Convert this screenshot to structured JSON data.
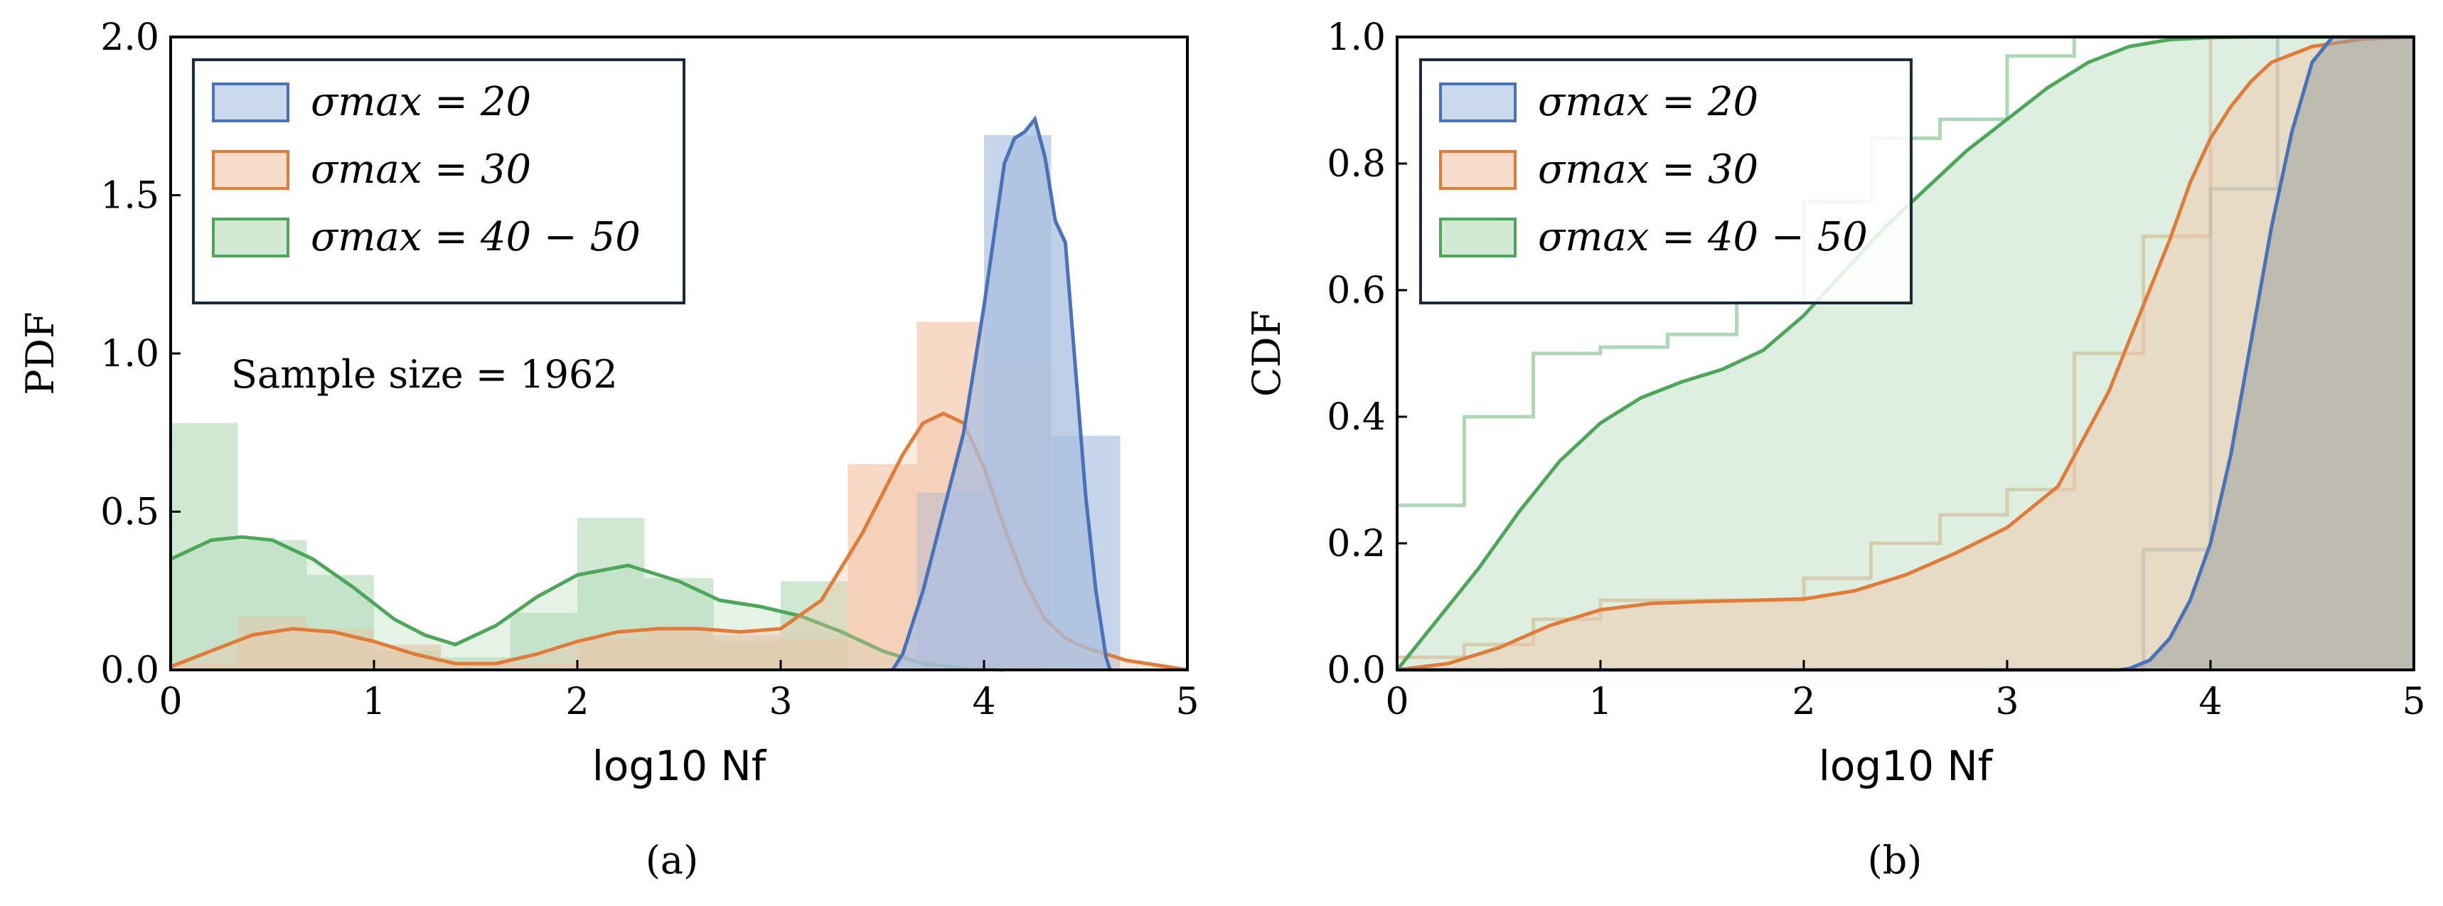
{
  "figure": {
    "captions": [
      "(a)",
      "(b)"
    ]
  },
  "colors": {
    "s20": "#4a72b8",
    "s30": "#e07b39",
    "s40": "#4ea65a",
    "s20_fill": "#a9bfe0",
    "s30_fill": "#f4c4a6",
    "s40_fill": "#b4dbb8"
  },
  "chart_data": [
    {
      "id": "pdf",
      "type": "bar",
      "title": "",
      "xlabel": "log10 Nf",
      "ylabel": "PDF",
      "xlim": [
        0,
        5
      ],
      "ylim": [
        0,
        2.0
      ],
      "xticks": [
        "0",
        "1",
        "2",
        "3",
        "4",
        "5"
      ],
      "yticks": [
        "0.0",
        "0.5",
        "1.0",
        "1.5",
        "2.0"
      ],
      "annotation": "Sample size = 1962",
      "legend": {
        "position": "top-left",
        "entries": [
          "σmax = 20",
          "σmax = 30",
          "σmax = 40 − 50"
        ]
      },
      "series": [
        {
          "name": "σmax = 20",
          "hist_edges": [
            3.67,
            4.0,
            4.33,
            4.67
          ],
          "hist_values": [
            0.56,
            1.69,
            0.74
          ],
          "kde_x": [
            3.55,
            3.6,
            3.7,
            3.8,
            3.9,
            4.0,
            4.1,
            4.15,
            4.2,
            4.25,
            4.3,
            4.35,
            4.4,
            4.45,
            4.5,
            4.55,
            4.6,
            4.62
          ],
          "kde_y": [
            0.0,
            0.05,
            0.25,
            0.5,
            0.75,
            1.15,
            1.6,
            1.68,
            1.7,
            1.74,
            1.62,
            1.42,
            1.35,
            0.95,
            0.55,
            0.25,
            0.04,
            0.0
          ]
        },
        {
          "name": "σmax = 30",
          "hist_edges": [
            0.0,
            0.33,
            0.67,
            1.0,
            1.33,
            1.67,
            2.0,
            2.33,
            2.67,
            3.0,
            3.33,
            3.67,
            4.0,
            4.33
          ],
          "hist_values": [
            0.02,
            0.17,
            0.13,
            0.08,
            0.02,
            0.02,
            0.1,
            0.12,
            0.11,
            0.1,
            0.65,
            1.1,
            0.97
          ],
          "kde_x": [
            0.0,
            0.2,
            0.4,
            0.6,
            0.8,
            1.0,
            1.2,
            1.4,
            1.6,
            1.8,
            2.0,
            2.2,
            2.4,
            2.6,
            2.8,
            3.0,
            3.2,
            3.4,
            3.6,
            3.7,
            3.8,
            3.9,
            4.0,
            4.1,
            4.2,
            4.3,
            4.4,
            4.5,
            4.7,
            4.9,
            5.0
          ],
          "kde_y": [
            0.01,
            0.06,
            0.11,
            0.13,
            0.12,
            0.09,
            0.05,
            0.02,
            0.02,
            0.05,
            0.09,
            0.12,
            0.13,
            0.13,
            0.12,
            0.13,
            0.22,
            0.43,
            0.68,
            0.78,
            0.81,
            0.78,
            0.64,
            0.45,
            0.28,
            0.16,
            0.1,
            0.07,
            0.03,
            0.01,
            0.0
          ]
        },
        {
          "name": "σmax = 40 − 50",
          "hist_edges": [
            0.0,
            0.33,
            0.67,
            1.0,
            1.33,
            1.67,
            2.0,
            2.33,
            2.67,
            3.0,
            3.33
          ],
          "hist_values": [
            0.78,
            0.41,
            0.3,
            0.06,
            0.04,
            0.18,
            0.48,
            0.29,
            0.09,
            0.28
          ],
          "kde_x": [
            0.0,
            0.2,
            0.35,
            0.5,
            0.7,
            0.9,
            1.1,
            1.25,
            1.4,
            1.6,
            1.8,
            2.0,
            2.25,
            2.5,
            2.7,
            2.9,
            3.1,
            3.3,
            3.5,
            3.7,
            3.9,
            4.1
          ],
          "kde_y": [
            0.35,
            0.41,
            0.42,
            0.41,
            0.35,
            0.26,
            0.16,
            0.11,
            0.08,
            0.14,
            0.23,
            0.3,
            0.33,
            0.28,
            0.22,
            0.2,
            0.17,
            0.12,
            0.06,
            0.02,
            0.005,
            0.0
          ]
        }
      ]
    },
    {
      "id": "cdf",
      "type": "line",
      "title": "",
      "xlabel": "log10 Nf",
      "ylabel": "CDF",
      "xlim": [
        0,
        5
      ],
      "ylim": [
        0,
        1.0
      ],
      "xticks": [
        "0",
        "1",
        "2",
        "3",
        "4",
        "5"
      ],
      "yticks": [
        "0.0",
        "0.2",
        "0.4",
        "0.6",
        "0.8",
        "1.0"
      ],
      "legend": {
        "position": "top-left",
        "entries": [
          "σmax = 20",
          "σmax = 30",
          "σmax = 40 − 50"
        ]
      },
      "series": [
        {
          "name": "σmax = 20",
          "ecdf_x": [
            0.0,
            3.67,
            3.67,
            3.67,
            4.0,
            4.0,
            4.33,
            4.33,
            5.0
          ],
          "ecdf_y": [
            0.0,
            0.0,
            0.19,
            0.19,
            0.19,
            0.76,
            0.76,
            1.0,
            1.0
          ],
          "kde_x": [
            0.0,
            3.55,
            3.6,
            3.7,
            3.8,
            3.9,
            4.0,
            4.1,
            4.2,
            4.3,
            4.4,
            4.5,
            4.6,
            5.0
          ],
          "kde_y": [
            0.0,
            0.0,
            0.002,
            0.015,
            0.05,
            0.11,
            0.2,
            0.34,
            0.52,
            0.7,
            0.85,
            0.96,
            1.0,
            1.0
          ]
        },
        {
          "name": "σmax = 30",
          "ecdf_x": [
            0.0,
            0.33,
            0.33,
            0.67,
            0.67,
            1.0,
            1.0,
            1.33,
            1.33,
            1.67,
            1.67,
            2.0,
            2.0,
            2.33,
            2.33,
            2.67,
            2.67,
            3.0,
            3.0,
            3.33,
            3.33,
            3.67,
            3.67,
            4.0,
            4.0,
            4.33,
            4.33,
            5.0
          ],
          "ecdf_y": [
            0.02,
            0.02,
            0.04,
            0.04,
            0.08,
            0.08,
            0.11,
            0.11,
            0.11,
            0.11,
            0.11,
            0.11,
            0.145,
            0.145,
            0.2,
            0.2,
            0.245,
            0.245,
            0.285,
            0.285,
            0.5,
            0.5,
            0.685,
            0.685,
            1.0,
            1.0,
            1.0,
            1.0
          ],
          "kde_x": [
            0.0,
            0.25,
            0.5,
            0.75,
            1.0,
            1.25,
            1.5,
            1.75,
            2.0,
            2.25,
            2.5,
            2.75,
            3.0,
            3.25,
            3.5,
            3.6,
            3.7,
            3.8,
            3.9,
            4.0,
            4.1,
            4.2,
            4.3,
            4.5,
            4.75,
            5.0
          ],
          "kde_y": [
            0.0,
            0.01,
            0.035,
            0.07,
            0.095,
            0.105,
            0.108,
            0.11,
            0.112,
            0.125,
            0.15,
            0.185,
            0.225,
            0.29,
            0.44,
            0.52,
            0.6,
            0.68,
            0.77,
            0.84,
            0.89,
            0.93,
            0.96,
            0.985,
            0.997,
            1.0
          ]
        },
        {
          "name": "σmax = 40 − 50",
          "ecdf_x": [
            0.0,
            0.33,
            0.33,
            0.67,
            0.67,
            1.0,
            1.0,
            1.33,
            1.33,
            1.67,
            1.67,
            2.0,
            2.0,
            2.33,
            2.33,
            2.67,
            2.67,
            3.0,
            3.0,
            3.33,
            3.33,
            5.0
          ],
          "ecdf_y": [
            0.26,
            0.26,
            0.4,
            0.4,
            0.5,
            0.5,
            0.51,
            0.51,
            0.53,
            0.53,
            0.58,
            0.58,
            0.74,
            0.74,
            0.84,
            0.84,
            0.87,
            0.87,
            0.97,
            0.97,
            1.0,
            1.0
          ],
          "kde_x": [
            0.0,
            0.2,
            0.4,
            0.6,
            0.8,
            1.0,
            1.2,
            1.4,
            1.6,
            1.8,
            2.0,
            2.2,
            2.4,
            2.6,
            2.8,
            3.0,
            3.2,
            3.4,
            3.6,
            3.8,
            4.0,
            4.2,
            5.0
          ],
          "kde_y": [
            0.0,
            0.08,
            0.16,
            0.25,
            0.33,
            0.39,
            0.43,
            0.455,
            0.475,
            0.505,
            0.56,
            0.63,
            0.7,
            0.76,
            0.82,
            0.87,
            0.92,
            0.96,
            0.985,
            0.996,
            0.999,
            1.0,
            1.0
          ]
        }
      ]
    }
  ]
}
